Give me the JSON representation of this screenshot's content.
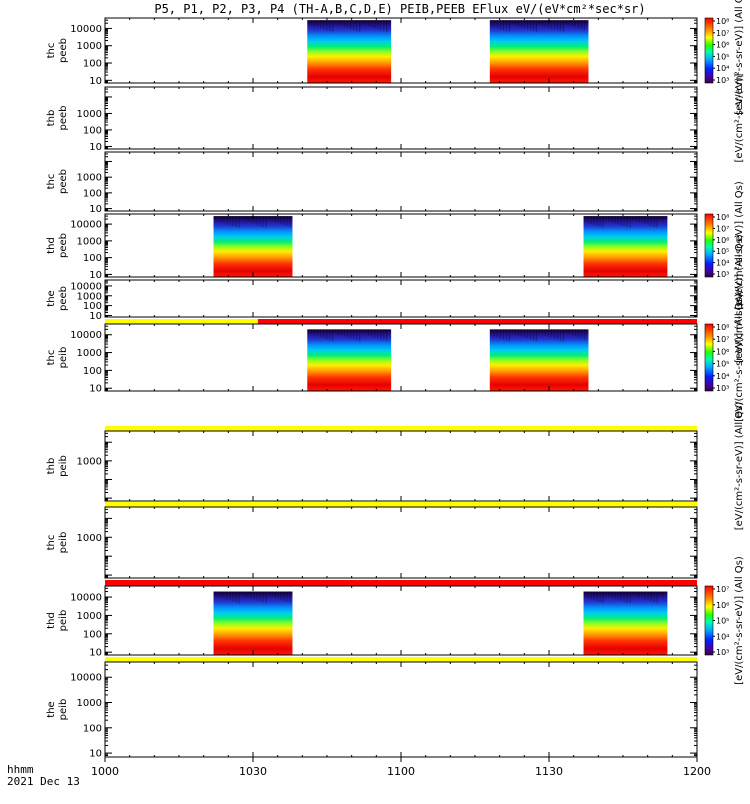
{
  "title": "P5, P1, P2, P3, P4 (TH-A,B,C,D,E) PEIB,PEEB EFlux eV/(eV*cm²*sec*sr)",
  "footer": {
    "label_hhmm": "hhmm",
    "date": "2021 Dec 13"
  },
  "colors": {
    "yellow": "#ffff00",
    "red": "#ff0000"
  },
  "chart_data": {
    "type": "heatmap",
    "x_unit": "hhmm",
    "xlim": [
      "1000",
      "1200"
    ],
    "x_ticks": [
      "1000",
      "1030",
      "1100",
      "1130",
      "1200"
    ],
    "panels": [
      {
        "id": "thc_peeb",
        "ylabel": [
          "thc",
          "peeb"
        ],
        "yscale": "log",
        "ylim": [
          7,
          40000
        ],
        "yticks": [
          "10",
          "100",
          "1000",
          "10000"
        ],
        "data_intervals": [
          [
            "1041",
            "1058"
          ],
          [
            "1118",
            "1138"
          ]
        ],
        "energy_max": 30000,
        "colorbar": {
          "label": "[eV/(cm²-s-sr-eV)] (All Qs)",
          "ticks": [
            "10³",
            "10⁴",
            "10⁵",
            "10⁶",
            "10⁷",
            "10⁸"
          ]
        }
      },
      {
        "id": "thb_peeb",
        "ylabel": [
          "thb",
          "peeb"
        ],
        "yscale": "log",
        "ylim": [
          7,
          40000
        ],
        "yticks": [
          "10",
          "100",
          "1000"
        ],
        "data_intervals": [],
        "colorbar": {
          "label": "[eV/(cm²-s-sr-eV)]"
        }
      },
      {
        "id": "thc_peeb_2",
        "ylabel": [
          "thc",
          "peeb"
        ],
        "yscale": "log",
        "ylim": [
          7,
          40000
        ],
        "yticks": [
          "10",
          "100",
          "1000"
        ],
        "data_intervals": [],
        "colorbar": {
          "label": ""
        }
      },
      {
        "id": "thd_peeb",
        "ylabel": [
          "thd",
          "peeb"
        ],
        "yscale": "log",
        "ylim": [
          7,
          40000
        ],
        "yticks": [
          "10",
          "100",
          "1000",
          "10000"
        ],
        "data_intervals": [
          [
            "1022",
            "1038"
          ],
          [
            "1137",
            "1154"
          ]
        ],
        "energy_max": 30000,
        "colorbar": {
          "label": "[eV/(cm²-s-sr-eV)] (All Qs)",
          "ticks": [
            "10³",
            "10⁴",
            "10⁵",
            "10⁶",
            "10⁷",
            "10⁸"
          ]
        }
      },
      {
        "id": "the_peeb",
        "ylabel": [
          "the",
          "peeb"
        ],
        "yscale": "log",
        "ylim": [
          7,
          40000
        ],
        "yticks": [
          "10",
          "100",
          "1000",
          "10000"
        ],
        "data_intervals": [],
        "colorbar": {
          "label": "[eV/(cm²-s-sr-eV)] (All Qs)"
        }
      },
      {
        "id": "thc_peib",
        "ylabel": [
          "thc",
          "peib"
        ],
        "yscale": "log",
        "ylim": [
          7,
          40000
        ],
        "yticks": [
          "10",
          "100",
          "1000",
          "10000"
        ],
        "data_intervals": [
          [
            "1041",
            "1058"
          ],
          [
            "1118",
            "1138"
          ]
        ],
        "energy_max": 20000,
        "colorbar": {
          "label": "[eV/(cm²-s-sr-eV)] (All Qs)",
          "ticks": [
            "10³",
            "10⁴",
            "10⁵",
            "10⁶",
            "10⁷",
            "10⁸"
          ]
        },
        "flag_bar": [
          {
            "from": "1000",
            "to": "1031",
            "color": "yellow"
          },
          {
            "from": "1031",
            "to": "1200",
            "color": "red"
          }
        ]
      },
      {
        "id": "thb_peib",
        "ylabel": [
          "thb",
          "peib"
        ],
        "yscale": "log",
        "ylim": [
          7,
          40000
        ],
        "yticks": [
          "1000"
        ],
        "data_intervals": [],
        "colorbar": {
          "label": "[eV/(cm²-s-sr-eV)] (All Qs)"
        },
        "flag_bar": [
          {
            "from": "1000",
            "to": "1200",
            "color": "yellow"
          }
        ]
      },
      {
        "id": "thc_peib_2",
        "ylabel": [
          "thc",
          "peib"
        ],
        "yscale": "log",
        "ylim": [
          7,
          40000
        ],
        "yticks": [
          "1000"
        ],
        "data_intervals": [],
        "colorbar": {
          "label": ""
        },
        "flag_bar": [
          {
            "from": "1000",
            "to": "1200",
            "color": "yellow"
          }
        ]
      },
      {
        "id": "thd_peib",
        "ylabel": [
          "thd",
          "peib"
        ],
        "yscale": "log",
        "ylim": [
          7,
          40000
        ],
        "yticks": [
          "10",
          "100",
          "1000",
          "10000"
        ],
        "data_intervals": [
          [
            "1022",
            "1038"
          ],
          [
            "1137",
            "1154"
          ]
        ],
        "energy_max": 20000,
        "colorbar": {
          "label": "[eV/(cm²-s-sr-eV)] (All Qs)",
          "ticks": [
            "10³",
            "10⁴",
            "10⁵",
            "10⁶",
            "10⁷"
          ]
        },
        "flag_bar": [
          {
            "from": "1000",
            "to": "1200",
            "color": "red"
          }
        ]
      },
      {
        "id": "the_peib",
        "ylabel": [
          "the",
          "peib"
        ],
        "yscale": "log",
        "ylim": [
          7,
          40000
        ],
        "yticks": [
          "10",
          "100",
          "1000",
          "10000"
        ],
        "data_intervals": [],
        "colorbar": {
          "label": ""
        },
        "flag_bar": [
          {
            "from": "1000",
            "to": "1200",
            "color": "yellow"
          }
        ]
      }
    ]
  }
}
